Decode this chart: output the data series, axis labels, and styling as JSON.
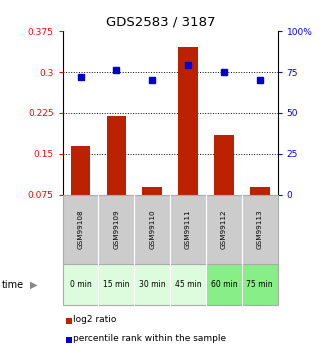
{
  "title": "GDS2583 / 3187",
  "samples": [
    "GSM99108",
    "GSM99109",
    "GSM99110",
    "GSM99111",
    "GSM99112",
    "GSM99113"
  ],
  "time_labels": [
    "0 min",
    "15 min",
    "30 min",
    "45 min",
    "60 min",
    "75 min"
  ],
  "log2_ratio": [
    0.165,
    0.22,
    0.09,
    0.345,
    0.185,
    0.09
  ],
  "percentile_rank": [
    72,
    76,
    70,
    79,
    75,
    70
  ],
  "bar_color": "#BB2200",
  "dot_color": "#0000CC",
  "left_ylim": [
    0.075,
    0.375
  ],
  "left_yticks": [
    0.075,
    0.15,
    0.225,
    0.3,
    0.375
  ],
  "left_yticklabels": [
    "0.075",
    "0.15",
    "0.225",
    "0.3",
    "0.375"
  ],
  "right_ylim": [
    0,
    100
  ],
  "right_yticks": [
    0,
    25,
    50,
    75,
    100
  ],
  "right_yticklabels": [
    "0",
    "25",
    "50",
    "75",
    "100%"
  ],
  "grid_lines": [
    0.15,
    0.225,
    0.3
  ],
  "time_colors": [
    "#ddfcdd",
    "#ddfcdd",
    "#ddfcdd",
    "#ddfcdd",
    "#88ee88",
    "#88ee88"
  ],
  "sample_box_color": "#cccccc",
  "legend_labels": [
    "log2 ratio",
    "percentile rank within the sample"
  ]
}
